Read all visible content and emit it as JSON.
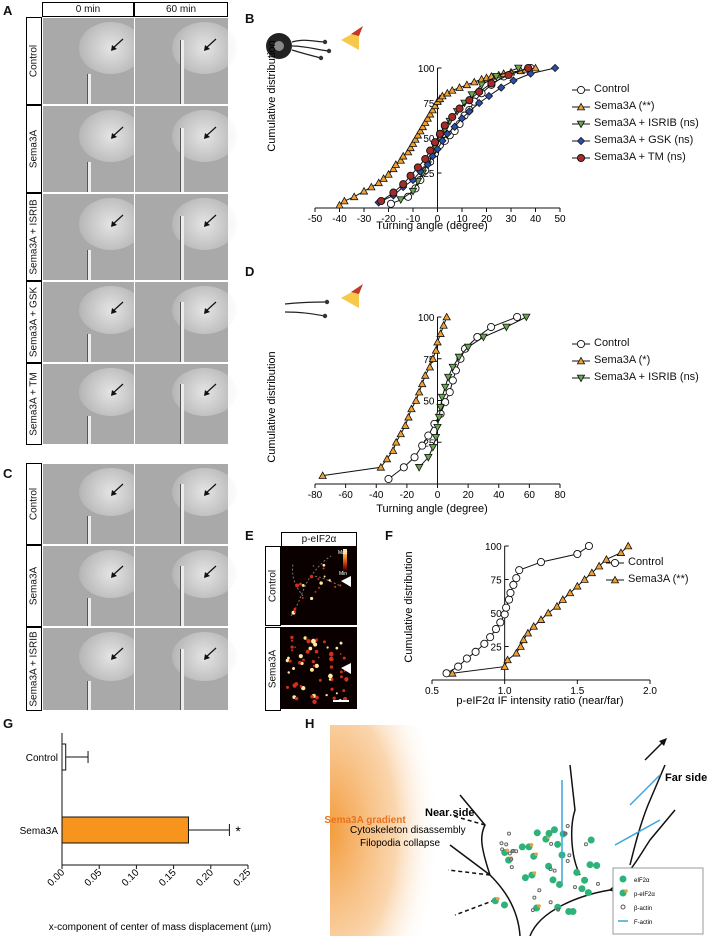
{
  "panel_labels": {
    "A": "A",
    "B": "B",
    "C": "C",
    "D": "D",
    "E": "E",
    "F": "F",
    "G": "G",
    "H": "H"
  },
  "panelA": {
    "col_headers": [
      "0 min",
      "60 min"
    ],
    "rows": [
      "Control",
      "Sema3A",
      "Sema3A + ISRIB",
      "Sema3A + GSK",
      "Sema3A + TM"
    ]
  },
  "panelC": {
    "rows": [
      "Control",
      "Sema3A",
      "Sema3A + ISRIB"
    ]
  },
  "panelE": {
    "header": "p-eIF2α",
    "rows": [
      "Control",
      "Sema3A"
    ],
    "colorbar_max": "Max",
    "colorbar_min": "Min",
    "colors": {
      "low": "#1a0000",
      "mid": "#d2301a",
      "high": "#ffe9a0"
    }
  },
  "panelH": {
    "gradient_label": "Sema3A gradient",
    "near_side": "Near side",
    "near_text_1": "Cytoskeleton disassembly",
    "near_text_2": "Filopodia collapse",
    "far_side": "Far side",
    "legend": [
      "eIF2α",
      "p-eIF2α",
      "β-actin",
      "F-actin"
    ],
    "colors": {
      "gradient": "#f39c3c",
      "eif2a": "#2db37a",
      "peif2a": "#e8a13a",
      "factin": "#3aa6d8"
    }
  },
  "chart_data": [
    {
      "id": "B",
      "type": "scatter",
      "xlabel": "Turning angle (degree)",
      "ylabel": "Cumulative distribution",
      "xlim": [
        -50,
        50
      ],
      "ylim": [
        0,
        100
      ],
      "xticks": [
        -50,
        -40,
        -30,
        -20,
        -10,
        0,
        10,
        20,
        30,
        40,
        50
      ],
      "yticks": [
        25,
        50,
        75,
        100
      ],
      "legend_position": "right",
      "series": [
        {
          "name": "Control",
          "marker": "circle",
          "color": "#ffffff",
          "x": [
            -19,
            -12,
            -9,
            -7,
            -5,
            -3,
            -1,
            1,
            3,
            5,
            7,
            9,
            11,
            13,
            15,
            18,
            22,
            27,
            38
          ],
          "y": [
            3,
            8,
            14,
            20,
            27,
            33,
            39,
            45,
            48,
            52,
            55,
            60,
            66,
            70,
            76,
            82,
            88,
            94,
            100
          ]
        },
        {
          "name": "Sema3A (**)",
          "marker": "triangle",
          "color": "#f0a030",
          "x": [
            -40,
            -38,
            -34,
            -30,
            -27,
            -24,
            -22,
            -20,
            -18,
            -17,
            -15,
            -14,
            -12,
            -11,
            -10,
            -9,
            -8,
            -7,
            -6,
            -5,
            -4,
            -3,
            -2,
            -1,
            0,
            1,
            2,
            4,
            6,
            9,
            12,
            15,
            18,
            20,
            22,
            25,
            27,
            30,
            34,
            36,
            40
          ],
          "y": [
            2,
            5,
            8,
            12,
            15,
            18,
            21,
            24,
            28,
            31,
            34,
            37,
            40,
            43,
            46,
            49,
            52,
            55,
            58,
            61,
            64,
            67,
            70,
            73,
            76,
            78,
            80,
            82,
            84,
            86,
            88,
            90,
            92,
            93,
            94,
            95,
            96,
            97,
            98,
            99,
            100
          ]
        },
        {
          "name": "Sema3A + ISRIB (ns)",
          "marker": "triangle-down",
          "color": "#6aa84f",
          "x": [
            -15,
            -10,
            -8,
            -6,
            -4,
            -2,
            -1,
            1,
            3,
            5,
            8,
            11,
            14,
            18,
            24,
            33
          ],
          "y": [
            6,
            12,
            19,
            25,
            31,
            38,
            44,
            50,
            56,
            62,
            69,
            75,
            81,
            88,
            94,
            100
          ]
        },
        {
          "name": "Sema3A + GSK (ns)",
          "marker": "diamond",
          "color": "#2a4fa8",
          "x": [
            -24,
            -18,
            -14,
            -10,
            -7,
            -4,
            -2,
            0,
            2,
            4,
            7,
            10,
            13,
            17,
            21,
            26,
            31,
            38,
            48
          ],
          "y": [
            4,
            9,
            15,
            20,
            26,
            31,
            37,
            42,
            48,
            53,
            58,
            64,
            69,
            75,
            80,
            86,
            91,
            96,
            100
          ]
        },
        {
          "name": "Sema3A + TM (ns)",
          "marker": "circle",
          "color": "#a52a2a",
          "x": [
            -23,
            -18,
            -14,
            -11,
            -8,
            -5,
            -3,
            -1,
            1,
            3,
            6,
            9,
            13,
            17,
            22,
            29,
            37
          ],
          "y": [
            5,
            11,
            17,
            23,
            29,
            35,
            41,
            47,
            53,
            59,
            65,
            71,
            77,
            83,
            89,
            95,
            100
          ]
        }
      ]
    },
    {
      "id": "D",
      "type": "scatter",
      "xlabel": "Turning angle (degree)",
      "ylabel": "Cumulative distribution",
      "xlim": [
        -80,
        80
      ],
      "ylim": [
        0,
        100
      ],
      "xticks": [
        -80,
        -60,
        -40,
        -20,
        0,
        20,
        40,
        60,
        80
      ],
      "yticks": [
        25,
        50,
        75,
        100
      ],
      "legend_position": "right",
      "series": [
        {
          "name": "Control",
          "marker": "circle",
          "color": "#ffffff",
          "x": [
            -32,
            -22,
            -15,
            -10,
            -6,
            -2,
            2,
            5,
            8,
            10,
            12,
            15,
            18,
            26,
            35,
            52
          ],
          "y": [
            3,
            10,
            16,
            23,
            29,
            36,
            42,
            49,
            55,
            62,
            68,
            75,
            81,
            88,
            94,
            100
          ]
        },
        {
          "name": "Sema3A (*)",
          "marker": "triangle",
          "color": "#f0a030",
          "x": [
            -75,
            -37,
            -33,
            -29,
            -27,
            -24,
            -21,
            -19,
            -17,
            -14,
            -12,
            -10,
            -8,
            -5,
            -3,
            -1,
            0,
            2,
            4,
            6
          ],
          "y": [
            5,
            10,
            15,
            20,
            25,
            30,
            35,
            40,
            45,
            50,
            55,
            60,
            65,
            70,
            75,
            80,
            85,
            90,
            95,
            100
          ]
        },
        {
          "name": "Sema3A + ISRIB (ns)",
          "marker": "triangle-down",
          "color": "#6aa84f",
          "x": [
            -12,
            -6,
            -3,
            -1,
            0,
            1,
            2,
            3,
            5,
            7,
            10,
            14,
            20,
            30,
            45,
            58
          ],
          "y": [
            10,
            16,
            22,
            28,
            34,
            40,
            46,
            52,
            58,
            64,
            70,
            76,
            82,
            88,
            94,
            100
          ]
        }
      ]
    },
    {
      "id": "F",
      "type": "scatter",
      "xlabel": "p-eIF2α IF intensity ratio (near/far)",
      "ylabel": "Cumulative distribution",
      "xlim": [
        0.5,
        2.0
      ],
      "ylim": [
        0,
        100
      ],
      "xticks": [
        0.5,
        1.0,
        1.5,
        2.0
      ],
      "yticks": [
        25,
        50,
        75,
        100
      ],
      "legend_position": "right",
      "series": [
        {
          "name": "Control",
          "marker": "circle",
          "color": "#ffffff",
          "x": [
            0.6,
            0.68,
            0.74,
            0.8,
            0.86,
            0.9,
            0.94,
            0.97,
            1.0,
            1.01,
            1.03,
            1.04,
            1.06,
            1.08,
            1.1,
            1.25,
            1.5,
            1.58
          ],
          "y": [
            5,
            10,
            16,
            21,
            27,
            32,
            38,
            43,
            49,
            54,
            60,
            65,
            71,
            76,
            82,
            88,
            94,
            100
          ]
        },
        {
          "name": "Sema3A (**)",
          "marker": "triangle",
          "color": "#f0a030",
          "x": [
            0.64,
            1.0,
            1.02,
            1.08,
            1.11,
            1.13,
            1.16,
            1.2,
            1.25,
            1.3,
            1.36,
            1.4,
            1.45,
            1.5,
            1.55,
            1.6,
            1.65,
            1.7,
            1.8,
            1.85
          ],
          "y": [
            5,
            10,
            15,
            20,
            25,
            30,
            35,
            40,
            45,
            50,
            55,
            60,
            65,
            70,
            75,
            80,
            85,
            90,
            95,
            100
          ]
        }
      ]
    },
    {
      "id": "G",
      "type": "bar",
      "orientation": "horizontal",
      "categories": [
        "Control",
        "Sema3A"
      ],
      "values": [
        0.005,
        0.17
      ],
      "errors": [
        0.03,
        0.055
      ],
      "significance": [
        "",
        "*"
      ],
      "xlabel": "x-component of center of mass displacement (µm)",
      "xlim": [
        0,
        0.25
      ],
      "xticks": [
        "0.00",
        "0.05",
        "0.10",
        "0.15",
        "0.20",
        "0.25"
      ],
      "colors": [
        "#ffffff",
        "#f7941d"
      ]
    }
  ]
}
